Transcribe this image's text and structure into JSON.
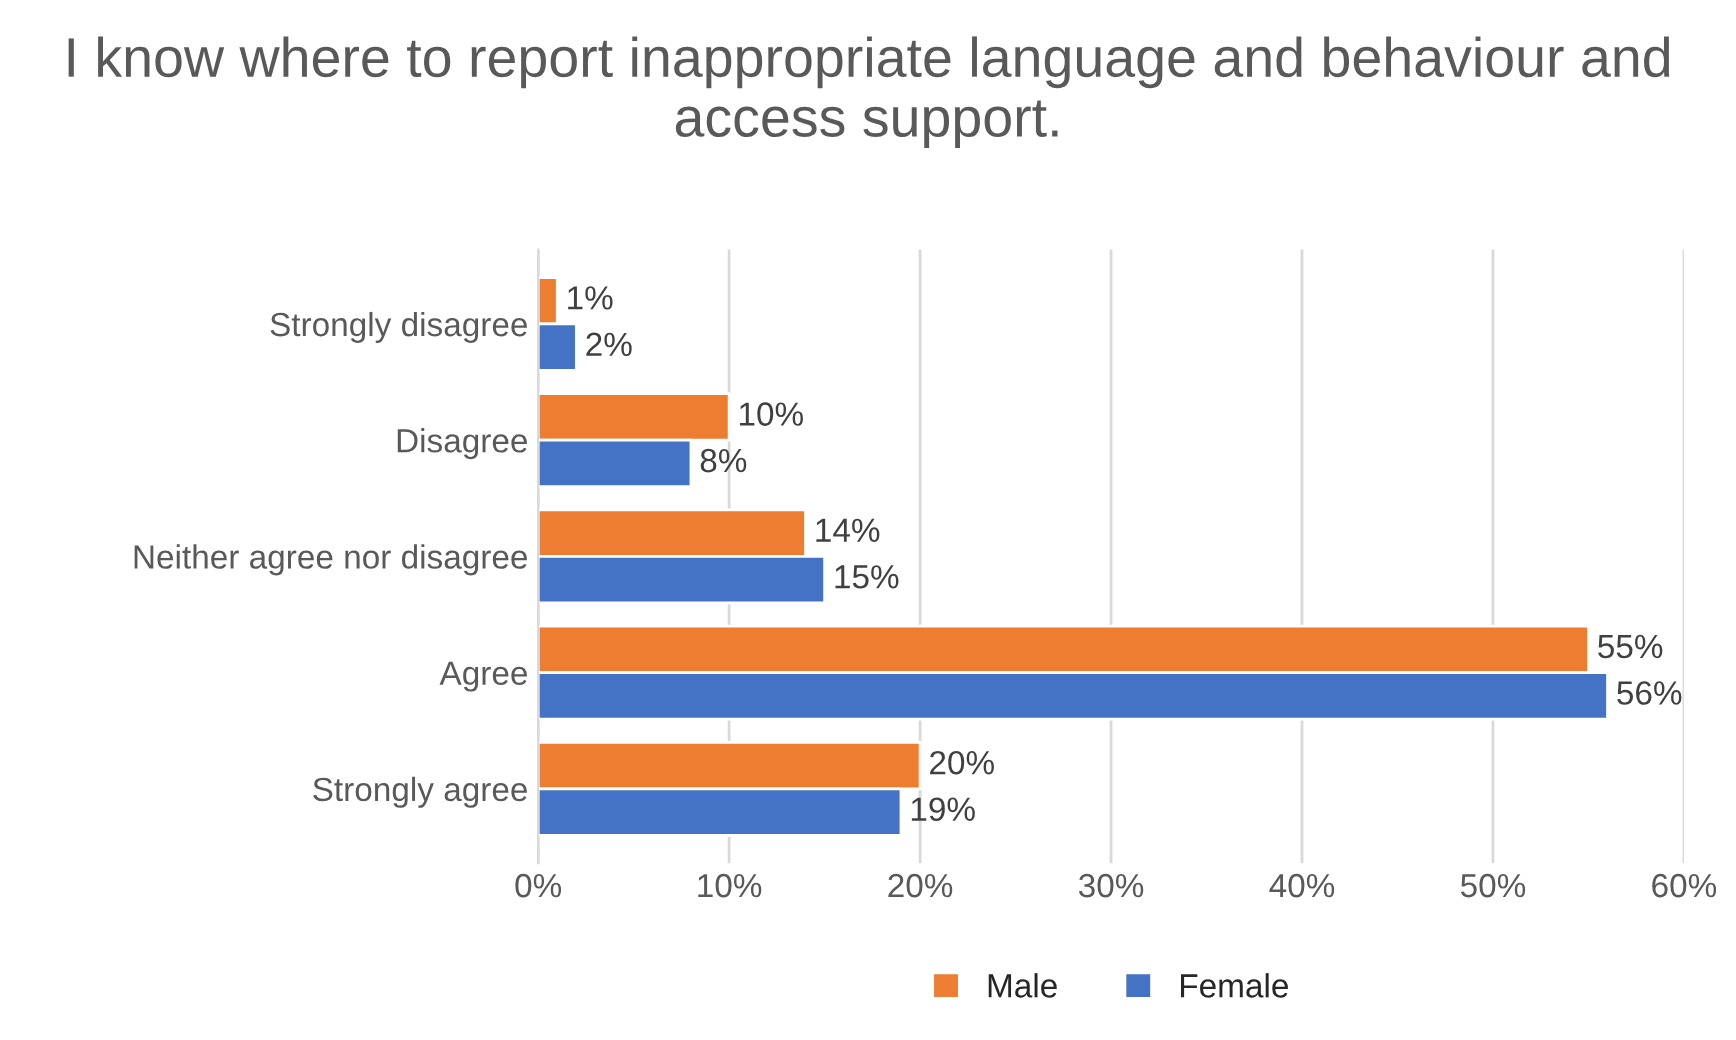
{
  "chart_data": {
    "type": "bar",
    "orientation": "horizontal",
    "title": "I know where to report inappropriate language and behaviour and access support.",
    "categories": [
      "Strongly disagree",
      "Disagree",
      "Neither agree nor disagree",
      "Agree",
      "Strongly agree"
    ],
    "series": [
      {
        "name": "Male",
        "color": "#ed7d31",
        "values": [
          1,
          10,
          14,
          55,
          20
        ],
        "value_labels": [
          "1%",
          "10%",
          "14%",
          "55%",
          "20%"
        ]
      },
      {
        "name": "Female",
        "color": "#4472c4",
        "values": [
          2,
          8,
          15,
          56,
          19
        ],
        "value_labels": [
          "2%",
          "8%",
          "15%",
          "56%",
          "19%"
        ]
      }
    ],
    "xlim": [
      0,
      60
    ],
    "xticks": [
      {
        "value": 0,
        "label": "0%"
      },
      {
        "value": 10,
        "label": "10%"
      },
      {
        "value": 20,
        "label": "20%"
      },
      {
        "value": 30,
        "label": "30%"
      },
      {
        "value": 40,
        "label": "40%"
      },
      {
        "value": 50,
        "label": "50%"
      },
      {
        "value": 60,
        "label": "60%"
      }
    ],
    "grid": "x",
    "legend": "bottom"
  }
}
